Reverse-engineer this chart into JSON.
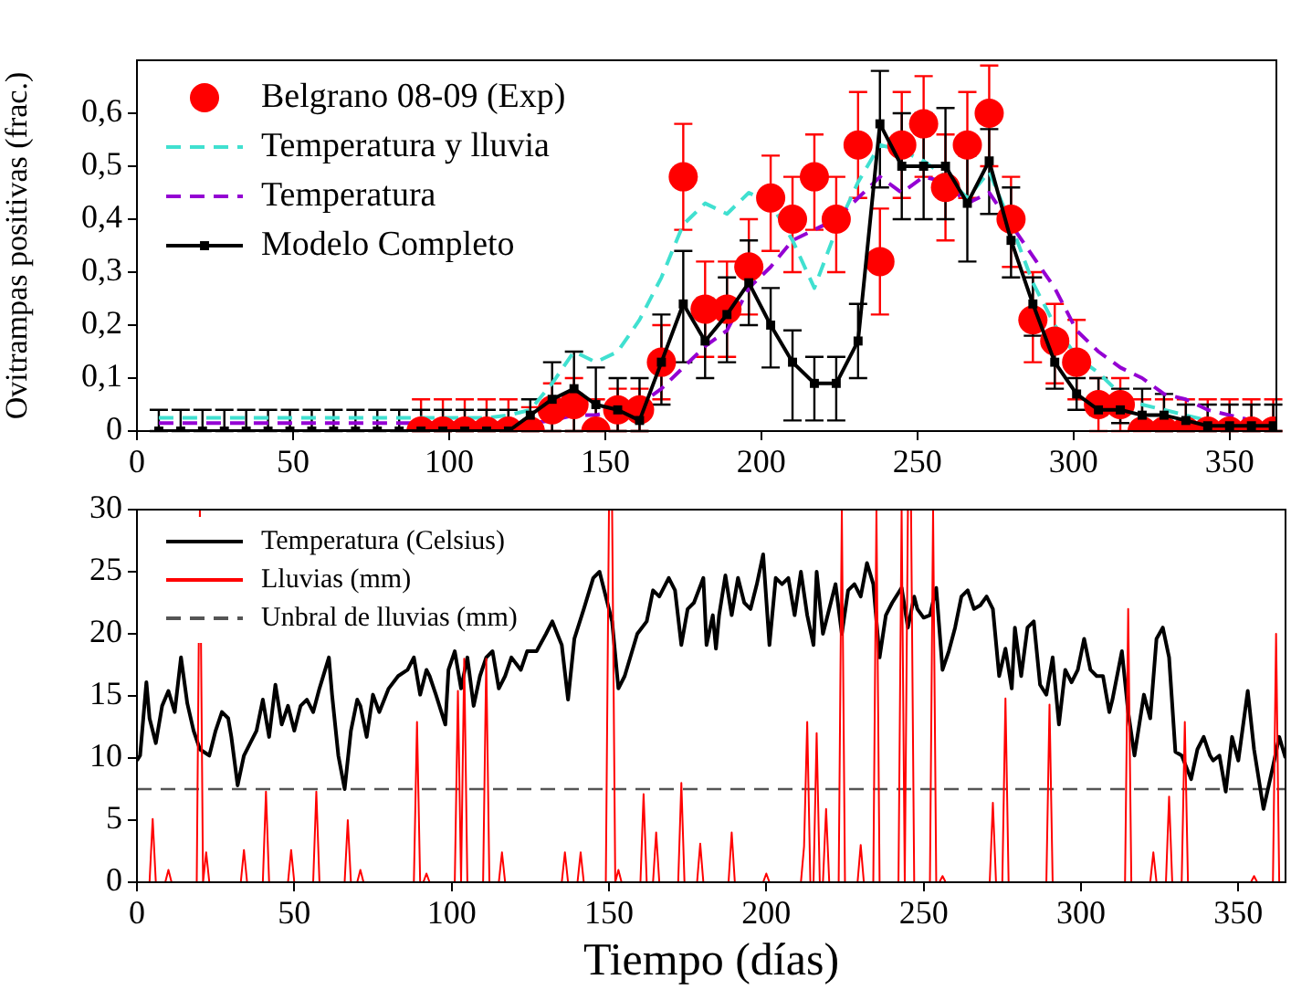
{
  "chart_data": [
    {
      "type": "line",
      "ylabel": "Ovitrampas positivas (frac.)",
      "legend": "top left",
      "xlim": [
        0,
        365
      ],
      "xticks": [
        0,
        50,
        100,
        150,
        200,
        250,
        300,
        350
      ],
      "ylim": [
        0,
        0.7
      ],
      "yticks": [
        0,
        {
          "value": 0.1,
          "label": "0,1"
        },
        {
          "value": 0.2,
          "label": "0,2"
        },
        {
          "value": 0.3,
          "label": "0,3"
        },
        {
          "value": 0.4,
          "label": "0,4"
        },
        {
          "value": 0.5,
          "label": "0,5"
        },
        {
          "value": 0.6,
          "label": "0,6"
        }
      ],
      "x": [
        7,
        14,
        21,
        28,
        35,
        42,
        49,
        56,
        63,
        70,
        77,
        84,
        91,
        98,
        105,
        112,
        119,
        126,
        133,
        140,
        147,
        154,
        161,
        168,
        175,
        182,
        189,
        196,
        203,
        210,
        217,
        224,
        231,
        238,
        245,
        252,
        259,
        266,
        273,
        280,
        287,
        294,
        301,
        308,
        315,
        322,
        329,
        336,
        343,
        350,
        357,
        364
      ],
      "series": [
        {
          "name": "Belgrano 08-09 (Exp)",
          "type": "scatter",
          "marker": "circle",
          "color": "#ff0000",
          "x": [
            91,
            98,
            105,
            112,
            119,
            126,
            133,
            140,
            147,
            154,
            161,
            168,
            175,
            182,
            189,
            196,
            203,
            210,
            217,
            224,
            231,
            238,
            245,
            252,
            259,
            266,
            273,
            280,
            287,
            294,
            301,
            308,
            315,
            322,
            329,
            336,
            343,
            350,
            357,
            364
          ],
          "values": [
            0,
            0,
            0,
            0,
            0,
            0,
            0.04,
            0.05,
            0,
            0.04,
            0.04,
            0.13,
            0.48,
            0.23,
            0.23,
            0.31,
            0.44,
            0.4,
            0.48,
            0.4,
            0.54,
            0.32,
            0.54,
            0.58,
            0.46,
            0.54,
            0.6,
            0.4,
            0.21,
            0.17,
            0.13,
            0.05,
            0.05,
            0,
            0,
            0,
            0,
            0,
            0,
            0
          ],
          "errors": [
            [
              0,
              0.06
            ],
            [
              0,
              0.06
            ],
            [
              0,
              0.06
            ],
            [
              0,
              0.06
            ],
            [
              0,
              0.06
            ],
            [
              0,
              0.045
            ],
            [
              0,
              0.09
            ],
            [
              0,
              0.1
            ],
            [
              0,
              0.06
            ],
            [
              0,
              0.08
            ],
            [
              0,
              0.08
            ],
            [
              0.06,
              0.2
            ],
            [
              0.38,
              0.58
            ],
            [
              0.14,
              0.32
            ],
            [
              0.14,
              0.32
            ],
            [
              0.22,
              0.4
            ],
            [
              0.34,
              0.52
            ],
            [
              0.3,
              0.48
            ],
            [
              0.38,
              0.56
            ],
            [
              0.3,
              0.48
            ],
            [
              0.44,
              0.64
            ],
            [
              0.22,
              0.42
            ],
            [
              0.44,
              0.64
            ],
            [
              0.48,
              0.67
            ],
            [
              0.36,
              0.56
            ],
            [
              0.44,
              0.64
            ],
            [
              0.5,
              0.69
            ],
            [
              0.31,
              0.48
            ],
            [
              0.13,
              0.3
            ],
            [
              0.09,
              0.24
            ],
            [
              0.06,
              0.21
            ],
            [
              0,
              0.1
            ],
            [
              0,
              0.1
            ],
            [
              0,
              0.06
            ],
            [
              0,
              0.06
            ],
            [
              0,
              0.06
            ],
            [
              0,
              0.06
            ],
            [
              0,
              0.06
            ],
            [
              0,
              0.06
            ],
            [
              0,
              0.06
            ]
          ]
        },
        {
          "name": "Temperatura y lluvia",
          "line_style": "dashed",
          "color": "#40e0d0",
          "values": [
            0.025,
            0.025,
            0.025,
            0.025,
            0.025,
            0.025,
            0.025,
            0.025,
            0.025,
            0.025,
            0.025,
            0.025,
            0.025,
            0.025,
            0.025,
            0.025,
            0.03,
            0.04,
            0.09,
            0.15,
            0.13,
            0.15,
            0.21,
            0.29,
            0.39,
            0.43,
            0.41,
            0.45,
            0.43,
            0.36,
            0.27,
            0.38,
            0.47,
            0.54,
            0.53,
            0.51,
            0.48,
            0.44,
            0.49,
            0.39,
            0.28,
            0.2,
            0.14,
            0.11,
            0.07,
            0.05,
            0.04,
            0.03,
            0.02,
            null,
            null,
            null
          ]
        },
        {
          "name": "Temperatura",
          "line_style": "dashed",
          "color": "#9400d3",
          "values": [
            0.015,
            0.015,
            0.015,
            0.015,
            0.015,
            0.015,
            0.015,
            0.015,
            0.015,
            0.015,
            0.015,
            0.015,
            0.015,
            0.015,
            0.015,
            0.015,
            0.015,
            0.015,
            0.02,
            0.03,
            0.03,
            0.04,
            0.05,
            0.08,
            0.12,
            0.16,
            0.19,
            0.27,
            0.31,
            0.36,
            0.38,
            0.4,
            0.44,
            0.48,
            0.45,
            0.48,
            0.47,
            0.43,
            0.45,
            0.39,
            0.33,
            0.27,
            0.19,
            0.15,
            0.12,
            0.1,
            0.07,
            0.06,
            0.04,
            0.03,
            0.02,
            0.01
          ]
        },
        {
          "name": "Modelo Completo",
          "marker": "square",
          "color": "#000000",
          "values": [
            0,
            0,
            0,
            0,
            0,
            0,
            0,
            0,
            0,
            0,
            0,
            0,
            0,
            0,
            0,
            0,
            0,
            0.03,
            0.06,
            0.08,
            0.05,
            0.04,
            0.02,
            0.13,
            0.24,
            0.17,
            0.22,
            0.28,
            0.2,
            0.13,
            0.09,
            0.09,
            0.17,
            0.58,
            0.5,
            0.5,
            0.5,
            0.43,
            0.51,
            0.36,
            0.24,
            0.13,
            0.07,
            0.04,
            0.04,
            0.03,
            0.03,
            0.02,
            0.01,
            0.01,
            0.01,
            0.01
          ],
          "errors": [
            [
              0,
              0.04
            ],
            [
              0,
              0.04
            ],
            [
              0,
              0.04
            ],
            [
              0,
              0.04
            ],
            [
              0,
              0.04
            ],
            [
              0,
              0.04
            ],
            [
              0,
              0.04
            ],
            [
              0,
              0.04
            ],
            [
              0,
              0.04
            ],
            [
              0,
              0.04
            ],
            [
              0,
              0.04
            ],
            [
              0,
              0.04
            ],
            [
              0,
              0.04
            ],
            [
              0,
              0.04
            ],
            [
              0,
              0.04
            ],
            [
              0,
              0.04
            ],
            [
              0,
              0.04
            ],
            [
              0,
              0.06
            ],
            [
              0,
              0.13
            ],
            [
              0,
              0.15
            ],
            [
              0,
              0.12
            ],
            [
              0,
              0.1
            ],
            [
              0,
              0.1
            ],
            [
              0.05,
              0.22
            ],
            [
              0.13,
              0.34
            ],
            [
              0.1,
              0.25
            ],
            [
              0.13,
              0.29
            ],
            [
              0.2,
              0.36
            ],
            [
              0.12,
              0.27
            ],
            [
              0.02,
              0.19
            ],
            [
              0.02,
              0.14
            ],
            [
              0.02,
              0.14
            ],
            [
              0.1,
              0.24
            ],
            [
              0.46,
              0.68
            ],
            [
              0.4,
              0.6
            ],
            [
              0.4,
              0.6
            ],
            [
              0.4,
              0.61
            ],
            [
              0.32,
              0.52
            ],
            [
              0.41,
              0.57
            ],
            [
              0.29,
              0.46
            ],
            [
              0.18,
              0.29
            ],
            [
              0.08,
              0.17
            ],
            [
              0.04,
              0.1
            ],
            [
              0.03,
              0.1
            ],
            [
              0.015,
              0.08
            ],
            [
              0.01,
              0.08
            ],
            [
              0,
              0.07
            ],
            [
              0,
              0.05
            ],
            [
              0,
              0.05
            ],
            [
              0,
              0.05
            ],
            [
              0,
              0.05
            ],
            [
              0,
              0.05
            ]
          ]
        }
      ]
    },
    {
      "type": "line",
      "xlabel": "Tiempo (días)",
      "legend": "top left",
      "xlim": [
        0,
        365
      ],
      "xticks": [
        0,
        50,
        100,
        150,
        200,
        250,
        300,
        350
      ],
      "ylim": [
        0,
        30
      ],
      "yticks": [
        0,
        5,
        10,
        15,
        20,
        25,
        30
      ],
      "series": [
        {
          "name": "Temperatura (Celsius)",
          "color": "#000000",
          "x": [
            0,
            1,
            3,
            4,
            6,
            8,
            10,
            12,
            14,
            16,
            18,
            20,
            23,
            25,
            27,
            29,
            30,
            32,
            34,
            36,
            38,
            40,
            42,
            44,
            46,
            48,
            50,
            52,
            54,
            56,
            58,
            61,
            62,
            64,
            66,
            68,
            70,
            71,
            73,
            75,
            77,
            80,
            83,
            86,
            88,
            90,
            92,
            93,
            95,
            98,
            99,
            101,
            103,
            105,
            107,
            109,
            111,
            113,
            115,
            117,
            119,
            122,
            124,
            127,
            130,
            132,
            135,
            137,
            139,
            142,
            145,
            147,
            149,
            151,
            153,
            155,
            159,
            162,
            164,
            166,
            169,
            171,
            173,
            175,
            177,
            180,
            181,
            183,
            184,
            185,
            187,
            189,
            191,
            193,
            195,
            197,
            199,
            201,
            203,
            205,
            207,
            209,
            211,
            213,
            215,
            216,
            218,
            220,
            222,
            224,
            226,
            228,
            230,
            232,
            234,
            236,
            238,
            240,
            243,
            245,
            247,
            248,
            250,
            252,
            254,
            256,
            258,
            260,
            262,
            264,
            266,
            268,
            270,
            272,
            274,
            276,
            278,
            279,
            281,
            283,
            285,
            287,
            289,
            291,
            293,
            295,
            297,
            299,
            301,
            303,
            305,
            307,
            309,
            310,
            313,
            315,
            317,
            320,
            322,
            324,
            326,
            328,
            330,
            332,
            335,
            337,
            339,
            341,
            342,
            344,
            346,
            348,
            350,
            353,
            355,
            358,
            361,
            363,
            365
          ],
          "values": [
            9.8,
            10.2,
            16.1,
            13.2,
            11.2,
            14.2,
            15.4,
            13.7,
            18.1,
            14.4,
            12.2,
            10.7,
            10.2,
            12.2,
            13.7,
            13.2,
            11.7,
            7.8,
            10.2,
            11.2,
            12.2,
            14.7,
            11.7,
            15.9,
            12.7,
            14.2,
            12.2,
            14.2,
            14.7,
            13.7,
            15.6,
            18.1,
            15.1,
            10.2,
            7.5,
            12.2,
            14.7,
            14.2,
            11.7,
            15.1,
            13.7,
            15.6,
            16.6,
            17.1,
            18.1,
            15.1,
            17.1,
            16.6,
            15.1,
            12.7,
            17.1,
            18.6,
            15.6,
            18.1,
            14.2,
            16.6,
            18.1,
            18.6,
            15.6,
            16.6,
            18.1,
            17.1,
            18.6,
            18.6,
            20.0,
            21.0,
            19.1,
            14.7,
            19.6,
            22.0,
            24.5,
            25.0,
            23.0,
            21.0,
            15.6,
            16.6,
            20.0,
            21.0,
            23.5,
            23.0,
            24.5,
            23.5,
            19.1,
            22.0,
            22.5,
            24.5,
            19.1,
            21.5,
            18.8,
            21.5,
            24.7,
            21.5,
            24.5,
            22.5,
            22.0,
            24.0,
            26.4,
            19.1,
            24.5,
            24.0,
            24.5,
            21.5,
            25.0,
            21.5,
            19.1,
            25.0,
            20.0,
            22.0,
            24.0,
            20.0,
            23.5,
            24.0,
            23.0,
            25.7,
            24.0,
            18.1,
            21.5,
            22.5,
            23.7,
            20.5,
            23.0,
            22.0,
            21.3,
            21.5,
            23.7,
            17.1,
            18.6,
            20.5,
            23.0,
            23.5,
            22.0,
            22.3,
            23.0,
            22.0,
            16.6,
            18.8,
            15.6,
            20.5,
            16.6,
            20.5,
            21.0,
            15.9,
            15.1,
            18.1,
            12.7,
            17.1,
            16.1,
            17.1,
            19.6,
            17.1,
            16.6,
            16.6,
            13.7,
            14.7,
            18.6,
            13.7,
            10.2,
            15.1,
            13.2,
            19.6,
            20.5,
            18.1,
            10.5,
            10.2,
            8.3,
            10.7,
            11.7,
            10.2,
            9.8,
            10.2,
            7.3,
            11.7,
            9.8,
            15.4,
            10.7,
            5.9,
            9.3,
            11.7,
            10.0
          ]
        },
        {
          "name": "Lluvias (mm)",
          "color": "#ff0000",
          "x": [
            4,
            5,
            6,
            9,
            10,
            11,
            19,
            20,
            21,
            22,
            23,
            33,
            34,
            35,
            40,
            41,
            42,
            48,
            49,
            50,
            56,
            57,
            58,
            66,
            67,
            68,
            70,
            71,
            72,
            88,
            89,
            90,
            91,
            92,
            93,
            101,
            102,
            103,
            104,
            105,
            110,
            111,
            112,
            115,
            116,
            117,
            135,
            136,
            137,
            140,
            141,
            142,
            149,
            150,
            151,
            152,
            153,
            154,
            160,
            161,
            162,
            164,
            165,
            166,
            172,
            173,
            174,
            178,
            179,
            180,
            188,
            189,
            190,
            199,
            200,
            201,
            211,
            212,
            213,
            214,
            215,
            216,
            217,
            218,
            219,
            220,
            223,
            224,
            225,
            229,
            230,
            231,
            234,
            235,
            236,
            242,
            243,
            244,
            245,
            246,
            247,
            252,
            253,
            254,
            255,
            256,
            257,
            271,
            272,
            273,
            275,
            276,
            277,
            289,
            290,
            291,
            314,
            315,
            316,
            322,
            323,
            324,
            327,
            328,
            329,
            332,
            333,
            334,
            354,
            355,
            356,
            361,
            362,
            363
          ],
          "values": [
            0,
            5.1,
            0,
            0,
            1.0,
            0,
            0,
            30,
            0,
            2.4,
            0,
            0,
            2.6,
            0,
            0,
            7.3,
            0,
            0,
            2.6,
            0,
            0,
            7.3,
            0,
            0,
            5.0,
            0,
            0,
            1.0,
            0,
            0,
            12.9,
            0,
            0,
            0.7,
            0,
            0,
            15.4,
            0,
            18,
            0,
            0,
            18,
            0,
            0,
            2.4,
            0,
            0,
            2.4,
            0,
            0,
            2.4,
            0,
            0,
            30,
            30,
            0,
            1.0,
            0,
            0,
            7.1,
            0,
            0,
            4.0,
            0,
            0,
            8.0,
            0,
            0,
            3.1,
            0,
            0,
            4.0,
            0,
            0,
            0.7,
            0,
            0,
            2.9,
            12.9,
            0,
            0,
            12.0,
            0,
            0,
            5.9,
            0,
            0,
            30,
            0,
            0,
            3.0,
            0,
            0,
            30,
            0,
            0,
            30,
            0,
            30,
            30,
            0,
            0,
            30,
            0,
            0,
            0.5,
            0,
            0,
            6.4,
            0,
            0,
            14.8,
            0,
            0,
            14.3,
            0,
            0,
            22,
            0,
            0,
            2.4,
            0,
            0,
            6.9,
            0,
            0,
            12.9,
            0,
            0,
            0.5,
            0,
            0,
            20,
            0
          ]
        }
      ],
      "ref_lines": [
        {
          "axis": "y",
          "value": 7.5,
          "label": "Unbral de lluvias (mm)",
          "color": "#555555",
          "line_style": "dashed"
        }
      ]
    }
  ]
}
